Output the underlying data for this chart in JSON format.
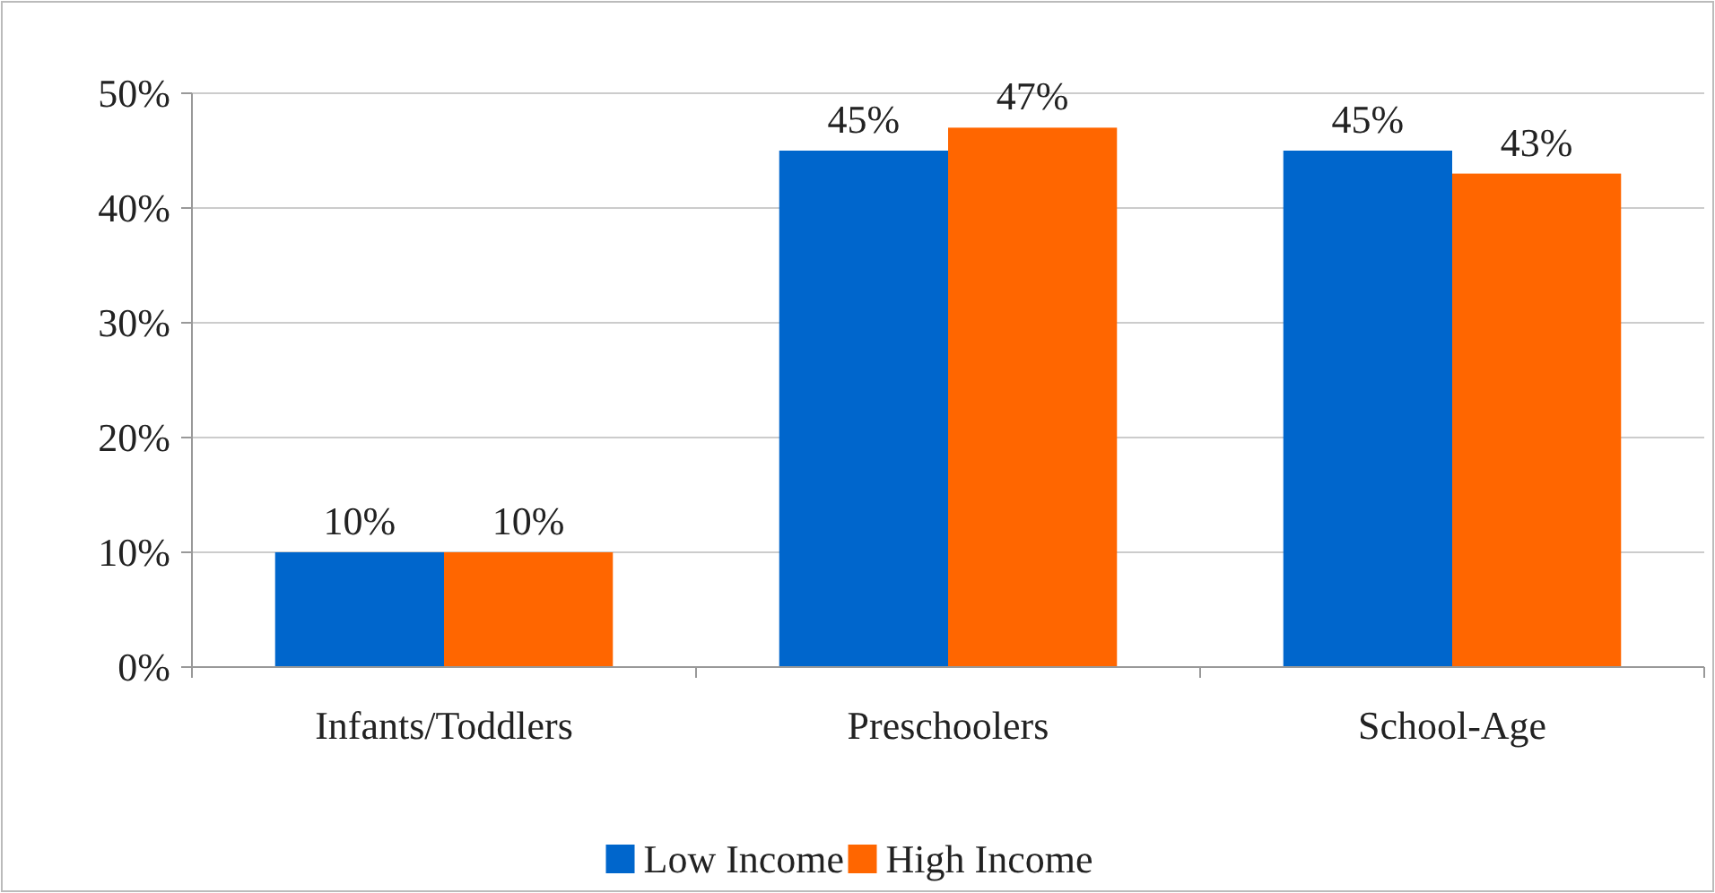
{
  "chart_data": {
    "type": "bar",
    "categories": [
      "Infants/Toddlers",
      "Preschoolers",
      "School-Age"
    ],
    "series": [
      {
        "name": "Low Income",
        "color": "#0066cc",
        "values": [
          10,
          45,
          45
        ],
        "value_labels": [
          "10%",
          "45%",
          "45%"
        ]
      },
      {
        "name": "High Income",
        "color": "#ff6600",
        "values": [
          10,
          47,
          43
        ],
        "value_labels": [
          "10%",
          "47%",
          "43%"
        ]
      }
    ],
    "ylim": [
      0,
      50
    ],
    "yticks": [
      {
        "value": 0,
        "label": "0%"
      },
      {
        "value": 10,
        "label": "10%"
      },
      {
        "value": 20,
        "label": "20%"
      },
      {
        "value": 30,
        "label": "30%"
      },
      {
        "value": 40,
        "label": "40%"
      },
      {
        "value": 50,
        "label": "50%"
      }
    ],
    "grid": "y",
    "legend": "bottom"
  }
}
